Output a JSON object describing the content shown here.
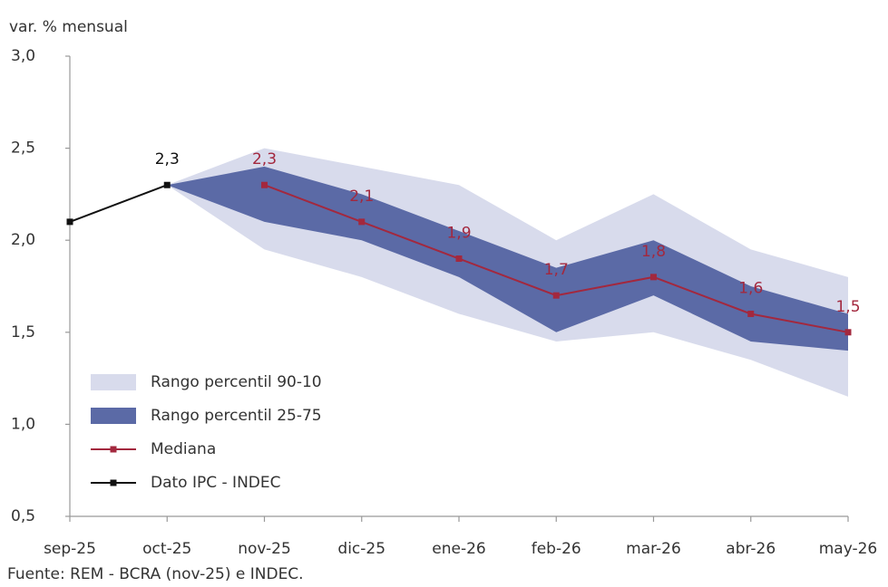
{
  "chart_data": {
    "type": "line",
    "y_label": "var. % mensual",
    "source": "Fuente: REM - BCRA (nov-25) e INDEC.",
    "categories": [
      "sep-25",
      "oct-25",
      "nov-25",
      "dic-25",
      "ene-26",
      "feb-26",
      "mar-26",
      "abr-26",
      "may-26"
    ],
    "ylim": [
      0.5,
      3.0
    ],
    "yticks": [
      {
        "value": 0.5,
        "label": "0,5"
      },
      {
        "value": 1.0,
        "label": "1,0"
      },
      {
        "value": 1.5,
        "label": "1,5"
      },
      {
        "value": 2.0,
        "label": "2,0"
      },
      {
        "value": 2.5,
        "label": "2,5"
      },
      {
        "value": 3.0,
        "label": "3,0"
      }
    ],
    "bands": [
      {
        "name": "Rango percentil 90-10",
        "color": "#d8dbec",
        "high": [
          null,
          2.3,
          2.5,
          2.4,
          2.3,
          2.0,
          2.25,
          1.95,
          1.8
        ],
        "low": [
          null,
          2.3,
          1.95,
          1.8,
          1.6,
          1.45,
          1.5,
          1.35,
          1.15
        ]
      },
      {
        "name": "Rango percentil 25-75",
        "color": "#5b6aa6",
        "high": [
          null,
          2.3,
          2.4,
          2.25,
          2.05,
          1.85,
          2.0,
          1.75,
          1.6
        ],
        "low": [
          null,
          2.3,
          2.1,
          2.0,
          1.8,
          1.5,
          1.7,
          1.45,
          1.4
        ]
      }
    ],
    "series": [
      {
        "name": "Mediana",
        "color": "#a3283e",
        "values": [
          null,
          null,
          2.3,
          2.1,
          1.9,
          1.7,
          1.8,
          1.6,
          1.5
        ],
        "value_labels": [
          null,
          null,
          "2,3",
          "2,1",
          "1,9",
          "1,7",
          "1,8",
          "1,6",
          "1,5"
        ]
      },
      {
        "name": "Dato IPC - INDEC",
        "color": "#111111",
        "values": [
          2.1,
          2.3,
          null,
          null,
          null,
          null,
          null,
          null,
          null
        ],
        "value_labels": [
          null,
          "2,3",
          null,
          null,
          null,
          null,
          null,
          null,
          null
        ]
      }
    ],
    "legend": "lower left"
  }
}
